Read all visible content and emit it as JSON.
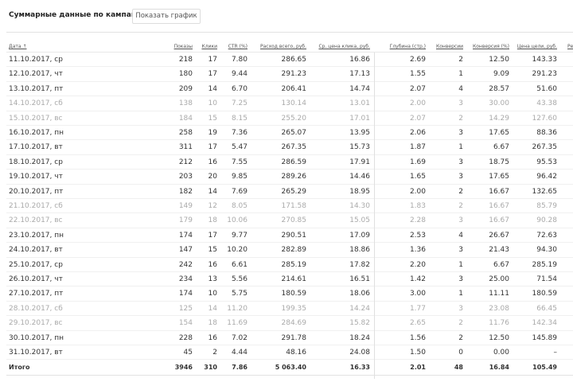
{
  "header": {
    "title": "Суммарные данные по кампании",
    "show_chart_button": "Показать график"
  },
  "table": {
    "columns": [
      "Дата ↑",
      "Показы",
      "Клики",
      "CTR (%)",
      "Расход всего, руб.",
      "Ср. цена клика, руб.",
      "Глубина (стр.)",
      "Конверсии",
      "Конверсия (%)",
      "Цена цели, руб.",
      "Ре"
    ],
    "rows": [
      {
        "date": "11.10.2017, ср",
        "weekend": false,
        "v": [
          "218",
          "17",
          "7.80",
          "286.65",
          "16.86",
          "2.69",
          "2",
          "12.50",
          "143.33"
        ]
      },
      {
        "date": "12.10.2017, чт",
        "weekend": false,
        "v": [
          "180",
          "17",
          "9.44",
          "291.23",
          "17.13",
          "1.55",
          "1",
          "9.09",
          "291.23"
        ]
      },
      {
        "date": "13.10.2017, пт",
        "weekend": false,
        "v": [
          "209",
          "14",
          "6.70",
          "206.41",
          "14.74",
          "2.07",
          "4",
          "28.57",
          "51.60"
        ]
      },
      {
        "date": "14.10.2017, сб",
        "weekend": true,
        "v": [
          "138",
          "10",
          "7.25",
          "130.14",
          "13.01",
          "2.00",
          "3",
          "30.00",
          "43.38"
        ]
      },
      {
        "date": "15.10.2017, вс",
        "weekend": true,
        "v": [
          "184",
          "15",
          "8.15",
          "255.20",
          "17.01",
          "2.07",
          "2",
          "14.29",
          "127.60"
        ]
      },
      {
        "date": "16.10.2017, пн",
        "weekend": false,
        "v": [
          "258",
          "19",
          "7.36",
          "265.07",
          "13.95",
          "2.06",
          "3",
          "17.65",
          "88.36"
        ]
      },
      {
        "date": "17.10.2017, вт",
        "weekend": false,
        "v": [
          "311",
          "17",
          "5.47",
          "267.35",
          "15.73",
          "1.87",
          "1",
          "6.67",
          "267.35"
        ]
      },
      {
        "date": "18.10.2017, ср",
        "weekend": false,
        "v": [
          "212",
          "16",
          "7.55",
          "286.59",
          "17.91",
          "1.69",
          "3",
          "18.75",
          "95.53"
        ]
      },
      {
        "date": "19.10.2017, чт",
        "weekend": false,
        "v": [
          "203",
          "20",
          "9.85",
          "289.26",
          "14.46",
          "1.65",
          "3",
          "17.65",
          "96.42"
        ]
      },
      {
        "date": "20.10.2017, пт",
        "weekend": false,
        "v": [
          "182",
          "14",
          "7.69",
          "265.29",
          "18.95",
          "2.00",
          "2",
          "16.67",
          "132.65"
        ]
      },
      {
        "date": "21.10.2017, сб",
        "weekend": true,
        "v": [
          "149",
          "12",
          "8.05",
          "171.58",
          "14.30",
          "1.83",
          "2",
          "16.67",
          "85.79"
        ]
      },
      {
        "date": "22.10.2017, вс",
        "weekend": true,
        "v": [
          "179",
          "18",
          "10.06",
          "270.85",
          "15.05",
          "2.28",
          "3",
          "16.67",
          "90.28"
        ]
      },
      {
        "date": "23.10.2017, пн",
        "weekend": false,
        "v": [
          "174",
          "17",
          "9.77",
          "290.51",
          "17.09",
          "2.53",
          "4",
          "26.67",
          "72.63"
        ]
      },
      {
        "date": "24.10.2017, вт",
        "weekend": false,
        "v": [
          "147",
          "15",
          "10.20",
          "282.89",
          "18.86",
          "1.36",
          "3",
          "21.43",
          "94.30"
        ]
      },
      {
        "date": "25.10.2017, ср",
        "weekend": false,
        "v": [
          "242",
          "16",
          "6.61",
          "285.19",
          "17.82",
          "2.20",
          "1",
          "6.67",
          "285.19"
        ]
      },
      {
        "date": "26.10.2017, чт",
        "weekend": false,
        "v": [
          "234",
          "13",
          "5.56",
          "214.61",
          "16.51",
          "1.42",
          "3",
          "25.00",
          "71.54"
        ]
      },
      {
        "date": "27.10.2017, пт",
        "weekend": false,
        "v": [
          "174",
          "10",
          "5.75",
          "180.59",
          "18.06",
          "3.00",
          "1",
          "11.11",
          "180.59"
        ]
      },
      {
        "date": "28.10.2017, сб",
        "weekend": true,
        "v": [
          "125",
          "14",
          "11.20",
          "199.35",
          "14.24",
          "1.77",
          "3",
          "23.08",
          "66.45"
        ]
      },
      {
        "date": "29.10.2017, вс",
        "weekend": true,
        "v": [
          "154",
          "18",
          "11.69",
          "284.69",
          "15.82",
          "2.65",
          "2",
          "11.76",
          "142.34"
        ]
      },
      {
        "date": "30.10.2017, пн",
        "weekend": false,
        "v": [
          "228",
          "16",
          "7.02",
          "291.78",
          "18.24",
          "1.56",
          "2",
          "12.50",
          "145.89"
        ]
      },
      {
        "date": "31.10.2017, вт",
        "weekend": false,
        "v": [
          "45",
          "2",
          "4.44",
          "48.16",
          "24.08",
          "1.50",
          "0",
          "0.00",
          "–"
        ]
      }
    ],
    "total": {
      "label": "Итого",
      "v": [
        "3946",
        "310",
        "7.86",
        "5 063.40",
        "16.33",
        "2.01",
        "48",
        "16.84",
        "105.49"
      ]
    }
  },
  "colors": {
    "text": "#333333",
    "weekend_text": "#aaaaaa"
  }
}
